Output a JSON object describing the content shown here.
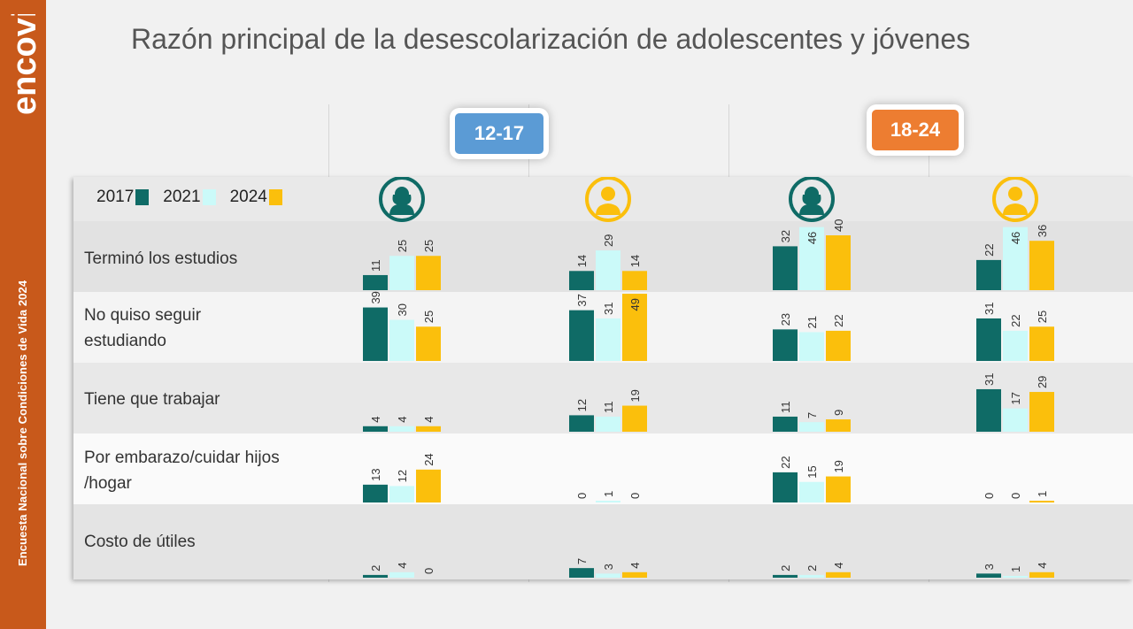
{
  "title": "Razón principal de la desescolarización de adolescentes y jóvenes",
  "brand": "encovi",
  "side_text": "Encuesta Nacional sobre Condiciones de Vida 2024",
  "colors": {
    "sidebar": "#c8591b",
    "series_2017": "#0f6b66",
    "series_2021": "#cbfaf9",
    "series_2024": "#fbbf0c",
    "age_12_17": "#5b9bd5",
    "age_18_24": "#ed7d31"
  },
  "age_groups": [
    {
      "label": "12-17",
      "color": "#5b9bd5"
    },
    {
      "label": "18-24",
      "color": "#ed7d31"
    }
  ],
  "chart_data": {
    "type": "bar",
    "title": "Razón principal de la desescolarización de adolescentes y jóvenes",
    "legend": [
      "2017",
      "2021",
      "2024"
    ],
    "legend_position": "top-left",
    "categories": [
      "Terminó los estudios",
      "No quiso seguir estudiando",
      "Tiene que trabajar",
      "Por embarazo/cuidar hijos /hogar",
      "Costo de útiles"
    ],
    "category_display": [
      [
        "Terminó los estudios"
      ],
      [
        "No quiso seguir",
        "estudiando"
      ],
      [
        "Tiene que trabajar"
      ],
      [
        "Por embarazo/cuidar hijos",
        "/hogar"
      ],
      [
        "Costo de útiles"
      ]
    ],
    "panels": [
      {
        "age_group": "12-17",
        "sex_icon": "female-icon",
        "values": [
          [
            11,
            25,
            25
          ],
          [
            39,
            30,
            25
          ],
          [
            4,
            4,
            4
          ],
          [
            13,
            12,
            24
          ],
          [
            2,
            4,
            0
          ]
        ]
      },
      {
        "age_group": "12-17",
        "sex_icon": "male-icon",
        "values": [
          [
            14,
            29,
            14
          ],
          [
            37,
            31,
            49
          ],
          [
            12,
            11,
            19
          ],
          [
            0,
            1,
            0
          ],
          [
            7,
            3,
            4
          ]
        ]
      },
      {
        "age_group": "18-24",
        "sex_icon": "female-icon",
        "values": [
          [
            32,
            46,
            40
          ],
          [
            23,
            21,
            22
          ],
          [
            11,
            7,
            9
          ],
          [
            22,
            15,
            19
          ],
          [
            2,
            2,
            4
          ]
        ]
      },
      {
        "age_group": "18-24",
        "sex_icon": "male-icon",
        "values": [
          [
            22,
            46,
            36
          ],
          [
            31,
            22,
            25
          ],
          [
            31,
            17,
            29
          ],
          [
            0,
            0,
            1
          ],
          [
            3,
            1,
            4
          ]
        ]
      }
    ]
  }
}
